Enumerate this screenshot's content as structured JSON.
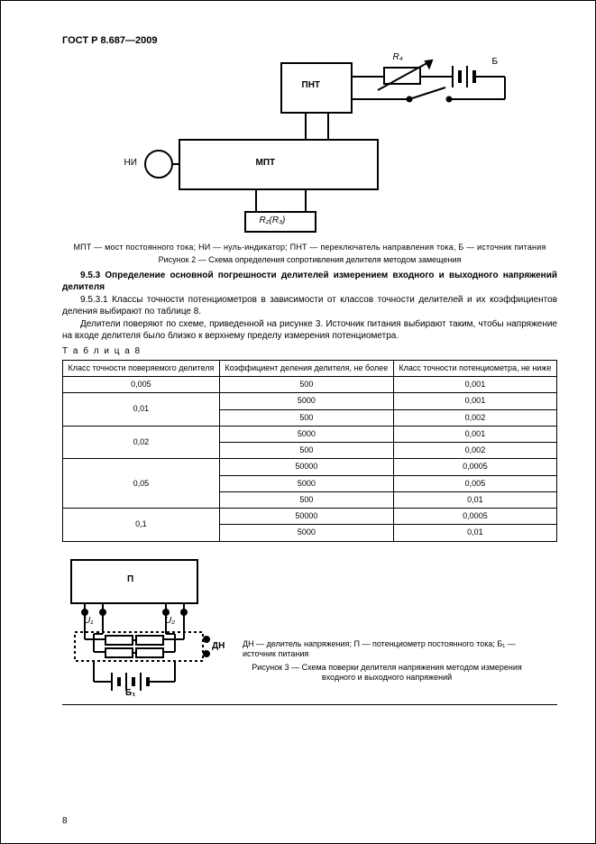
{
  "header": "ГОСТ Р 8.687—2009",
  "figure2": {
    "labels": {
      "pnt": "ПНТ",
      "mpt": "МПТ",
      "ni": "НИ",
      "r4": "R₄",
      "b": "Б",
      "r2": "R₂(R₃)"
    },
    "caption": "МПТ — мост постоянного тока; НИ — нуль-индикатор; ПНТ — переключатель направления тока, Б — источник питания",
    "label": "Рисунок  2 — Схема определения сопротивления делителя методом замещения"
  },
  "section": {
    "num": "9.5.3",
    "title": "Определение основной погрешности делителей измерением входного и выходного напряжений делителя",
    "p1_num": "9.5.3.1",
    "p1": "Классы точности потенциометров в зависимости от классов точности делителей и их коэффициентов деления выбирают по таблице 8.",
    "p2": "Делители поверяют по схеме, приведенной на рисунке 3. Источник питания выбирают таким, чтобы напряжение на входе делителя было близко к верхнему пределу измерения потенциометра."
  },
  "table": {
    "label": "Т а б л и ц а  8",
    "columns": [
      "Класс точности поверяемого делителя",
      "Коэффициент деления делителя, не более",
      "Класс точности потенциометра, не ниже"
    ],
    "rows": [
      {
        "c1": "0,005",
        "span": 1,
        "cells": [
          [
            "500",
            "0,001"
          ]
        ]
      },
      {
        "c1": "0,01",
        "span": 2,
        "cells": [
          [
            "5000",
            "0,001"
          ],
          [
            "500",
            "0,002"
          ]
        ]
      },
      {
        "c1": "0,02",
        "span": 2,
        "cells": [
          [
            "5000",
            "0,001"
          ],
          [
            "500",
            "0,002"
          ]
        ]
      },
      {
        "c1": "0,05",
        "span": 3,
        "cells": [
          [
            "50000",
            "0,0005"
          ],
          [
            "5000",
            "0,005"
          ],
          [
            "500",
            "0,01"
          ]
        ]
      },
      {
        "c1": "0,1",
        "span": 2,
        "cells": [
          [
            "50000",
            "0,0005"
          ],
          [
            "5000",
            "0,01"
          ]
        ]
      }
    ]
  },
  "figure3": {
    "labels": {
      "p": "П",
      "u1": "U₁",
      "u2": "U₂",
      "dn": "ДН",
      "b1": "Б₁"
    },
    "caption": "ДН — делитель напряжения; П — потенциометр постоянного тока; Б₁ — источник питания",
    "label": "Рисунок  3 — Схема поверки делителя напряжения методом измерения входного и выходного напряжений"
  },
  "pagenum": "8",
  "style": {
    "line_color": "#000000",
    "stroke_width": 2,
    "bg": "#ffffff",
    "font_body": 10,
    "font_small": 9
  }
}
